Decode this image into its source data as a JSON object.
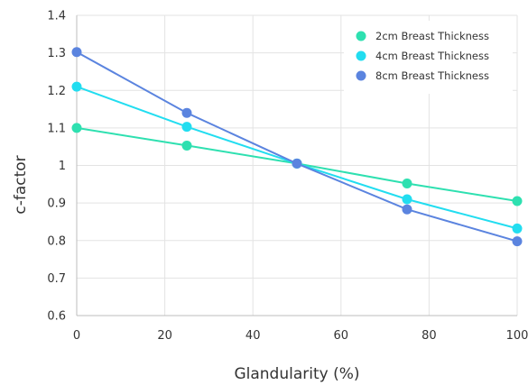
{
  "chart_data": {
    "type": "line",
    "title": "",
    "xlabel": "Glandularity (%)",
    "ylabel": "c-factor",
    "xlim": [
      0,
      100
    ],
    "ylim": [
      0.6,
      1.4
    ],
    "x_ticks": [
      "0",
      "20",
      "40",
      "60",
      "80",
      "100"
    ],
    "y_ticks": [
      "0.6",
      "0.7",
      "0.8",
      "0.9",
      "1",
      "1.1",
      "1.2",
      "1.3",
      "1.4"
    ],
    "grid": true,
    "legend_position": "top-right",
    "series": [
      {
        "name": "2cm Breast Thickness",
        "color": "#2ee0b0",
        "x": [
          0,
          25,
          50,
          75,
          100
        ],
        "y": [
          1.1,
          1.053,
          1.005,
          0.952,
          0.905
        ]
      },
      {
        "name": "4cm Breast Thickness",
        "color": "#22ddf0",
        "x": [
          0,
          25,
          50,
          75,
          100
        ],
        "y": [
          1.21,
          1.103,
          1.005,
          0.91,
          0.832
        ]
      },
      {
        "name": "8cm Breast Thickness",
        "color": "#5b84df",
        "x": [
          0,
          25,
          50,
          75,
          100
        ],
        "y": [
          1.302,
          1.14,
          1.005,
          0.883,
          0.798
        ]
      }
    ]
  }
}
